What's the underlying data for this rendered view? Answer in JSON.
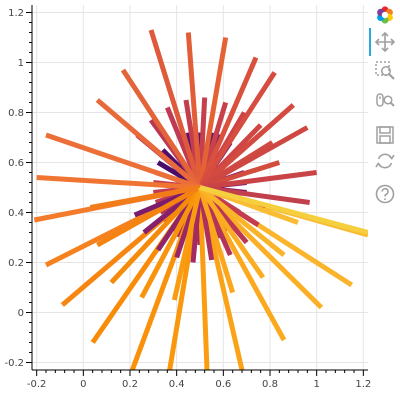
{
  "chart_data": {
    "type": "line",
    "title": "",
    "xlabel": "",
    "ylabel": "",
    "xlim": [
      -0.22,
      1.22
    ],
    "ylim": [
      -0.23,
      1.23
    ],
    "grid": true,
    "x_ticks": [
      "-0.2",
      "0",
      "0.2",
      "0.4",
      "0.6",
      "0.8",
      "1",
      "1.2"
    ],
    "x_tick_values": [
      -0.2,
      0,
      0.2,
      0.4,
      0.6,
      0.8,
      1,
      1.2
    ],
    "y_ticks": [
      "-0.2",
      "0",
      "0.2",
      "0.4",
      "0.6",
      "0.8",
      "1",
      "1.2"
    ],
    "y_tick_values": [
      -0.2,
      0,
      0.2,
      0.4,
      0.6,
      0.8,
      1,
      1.2
    ],
    "center": [
      0.5,
      0.5
    ],
    "palette": "Inferno",
    "segments": [
      {
        "angle": 150,
        "x0": 0.5,
        "y0": 0.5,
        "x1": 0.32,
        "y1": 0.6,
        "color": "#4a0c6b"
      },
      {
        "angle": 138,
        "x0": 0.5,
        "y0": 0.5,
        "x1": 0.34,
        "y1": 0.65,
        "color": "#4f0d6c"
      },
      {
        "angle": 126,
        "x0": 0.5,
        "y0": 0.5,
        "x1": 0.37,
        "y1": 0.68,
        "color": "#540f6d"
      },
      {
        "angle": 114,
        "x0": 0.5,
        "y0": 0.5,
        "x1": 0.41,
        "y1": 0.71,
        "color": "#59106e"
      },
      {
        "angle": 102,
        "x0": 0.5,
        "y0": 0.5,
        "x1": 0.45,
        "y1": 0.72,
        "color": "#5d126e"
      },
      {
        "angle": 90,
        "x0": 0.5,
        "y0": 0.5,
        "x1": 0.5,
        "y1": 0.72,
        "color": "#62146e"
      },
      {
        "angle": 78,
        "x0": 0.5,
        "y0": 0.5,
        "x1": 0.55,
        "y1": 0.72,
        "color": "#67166e"
      },
      {
        "angle": 66,
        "x0": 0.5,
        "y0": 0.5,
        "x1": 0.59,
        "y1": 0.71,
        "color": "#6b176e"
      },
      {
        "angle": 54,
        "x0": 0.5,
        "y0": 0.5,
        "x1": 0.63,
        "y1": 0.68,
        "color": "#70196e"
      },
      {
        "angle": 42,
        "x0": 0.5,
        "y0": 0.5,
        "x1": 0.66,
        "y1": 0.65,
        "color": "#741a6e"
      },
      {
        "angle": 30,
        "x0": 0.5,
        "y0": 0.5,
        "x1": 0.68,
        "y1": 0.6,
        "color": "#791c6d"
      },
      {
        "angle": 18,
        "x0": 0.5,
        "y0": 0.5,
        "x1": 0.69,
        "y1": 0.56,
        "color": "#7d1d6c"
      },
      {
        "angle": 6,
        "x0": 0.5,
        "y0": 0.5,
        "x1": 0.7,
        "y1": 0.52,
        "color": "#821f6c"
      },
      {
        "angle": -6,
        "x0": 0.5,
        "y0": 0.5,
        "x1": 0.7,
        "y1": 0.48,
        "color": "#86206b"
      },
      {
        "angle": -18,
        "x0": 0.5,
        "y0": 0.5,
        "x1": 0.69,
        "y1": 0.44,
        "color": "#8b226a"
      },
      {
        "angle": -30,
        "x0": 0.5,
        "y0": 0.5,
        "x1": 0.67,
        "y1": 0.4,
        "color": "#8f2469"
      },
      {
        "angle": -42,
        "x0": 0.5,
        "y0": 0.5,
        "x1": 0.65,
        "y1": 0.36,
        "color": "#932567"
      },
      {
        "angle": -54,
        "x0": 0.5,
        "y0": 0.5,
        "x1": 0.62,
        "y1": 0.33,
        "color": "#982766"
      },
      {
        "angle": -66,
        "x0": 0.5,
        "y0": 0.5,
        "x1": 0.59,
        "y1": 0.3,
        "color": "#9c2964"
      },
      {
        "angle": -78,
        "x0": 0.5,
        "y0": 0.5,
        "x1": 0.55,
        "y1": 0.28,
        "color": "#a02a63"
      },
      {
        "angle": -90,
        "x0": 0.5,
        "y0": 0.5,
        "x1": 0.5,
        "y1": 0.27,
        "color": "#a42c61"
      },
      {
        "angle": -102,
        "x0": 0.5,
        "y0": 0.5,
        "x1": 0.45,
        "y1": 0.28,
        "color": "#a92e5f"
      },
      {
        "angle": -114,
        "x0": 0.5,
        "y0": 0.5,
        "x1": 0.41,
        "y1": 0.3,
        "color": "#ad305d"
      },
      {
        "angle": -126,
        "x0": 0.5,
        "y0": 0.5,
        "x1": 0.38,
        "y1": 0.33,
        "color": "#b1325a"
      },
      {
        "angle": -138,
        "x0": 0.5,
        "y0": 0.5,
        "x1": 0.35,
        "y1": 0.36,
        "color": "#b53458"
      },
      {
        "angle": -150,
        "x0": 0.5,
        "y0": 0.5,
        "x1": 0.33,
        "y1": 0.4,
        "color": "#b83656"
      },
      {
        "angle": -162,
        "x0": 0.5,
        "y0": 0.5,
        "x1": 0.31,
        "y1": 0.44,
        "color": "#bc3853"
      },
      {
        "angle": -174,
        "x0": 0.5,
        "y0": 0.5,
        "x1": 0.3,
        "y1": 0.48,
        "color": "#c03a51"
      },
      {
        "angle": 174,
        "x0": 0.5,
        "y0": 0.5,
        "x1": 0.3,
        "y1": 0.52,
        "color": "#c33d4e"
      },
      {
        "angle": 162,
        "x0": 0.5,
        "y0": 0.5,
        "x1": 0.31,
        "y1": 0.56,
        "color": "#c63f4b"
      },
      {
        "angle": 72,
        "x0": 0.5,
        "y0": 0.5,
        "x1": 0.61,
        "y1": 0.84,
        "color": "#c9414a"
      },
      {
        "angle": 58,
        "x0": 0.5,
        "y0": 0.5,
        "x1": 0.69,
        "y1": 0.8,
        "color": "#cb4446"
      },
      {
        "angle": 44,
        "x0": 0.5,
        "y0": 0.5,
        "x1": 0.76,
        "y1": 0.75,
        "color": "#ce4744"
      },
      {
        "angle": 30,
        "x0": 0.5,
        "y0": 0.5,
        "x1": 0.81,
        "y1": 0.68,
        "color": "#d14a41"
      },
      {
        "angle": 16,
        "x0": 0.5,
        "y0": 0.5,
        "x1": 0.84,
        "y1": 0.6,
        "color": "#d34d3e"
      },
      {
        "angle": 86,
        "x0": 0.5,
        "y0": 0.5,
        "x1": 0.52,
        "y1": 0.86,
        "color": "#c63f4c"
      },
      {
        "angle": 100,
        "x0": 0.5,
        "y0": 0.5,
        "x1": 0.44,
        "y1": 0.85,
        "color": "#c33d4f"
      },
      {
        "angle": 114,
        "x0": 0.5,
        "y0": 0.5,
        "x1": 0.36,
        "y1": 0.82,
        "color": "#bf3a52"
      },
      {
        "angle": 128,
        "x0": 0.5,
        "y0": 0.5,
        "x1": 0.29,
        "y1": 0.77,
        "color": "#bb3855"
      },
      {
        "angle": 142,
        "x0": 0.5,
        "y0": 0.5,
        "x1": 0.23,
        "y1": 0.71,
        "color": "#b63557"
      },
      {
        "angle": 106,
        "x0": 0.5,
        "y0": 0.5,
        "x1": 0.29,
        "y1": 1.13,
        "color": "#de5a3a"
      },
      {
        "angle": 94,
        "x0": 0.5,
        "y0": 0.5,
        "x1": 0.45,
        "y1": 1.12,
        "color": "#e25e38"
      },
      {
        "angle": 82,
        "x0": 0.5,
        "y0": 0.5,
        "x1": 0.61,
        "y1": 1.1,
        "color": "#e56234"
      },
      {
        "angle": 69,
        "x0": 0.5,
        "y0": 0.5,
        "x1": 0.74,
        "y1": 1.02,
        "color": "#d9503d"
      },
      {
        "angle": 57,
        "x0": 0.5,
        "y0": 0.5,
        "x1": 0.82,
        "y1": 0.96,
        "color": "#d64c3f"
      },
      {
        "angle": 45,
        "x0": 0.5,
        "y0": 0.5,
        "x1": 0.9,
        "y1": 0.83,
        "color": "#d34a40"
      },
      {
        "angle": 33,
        "x0": 0.5,
        "y0": 0.5,
        "x1": 0.96,
        "y1": 0.74,
        "color": "#cf4742"
      },
      {
        "angle": 20,
        "x0": 0.5,
        "y0": 0.5,
        "x1": 1.0,
        "y1": 0.56,
        "color": "#c94347"
      },
      {
        "angle": 8,
        "x0": 0.5,
        "y0": 0.5,
        "x1": 0.97,
        "y1": 0.44,
        "color": "#c1404b"
      },
      {
        "angle": 118,
        "x0": 0.5,
        "y0": 0.5,
        "x1": 0.17,
        "y1": 0.97,
        "color": "#e4643a"
      },
      {
        "angle": 131,
        "x0": 0.5,
        "y0": 0.5,
        "x1": 0.06,
        "y1": 0.85,
        "color": "#e8693a"
      },
      {
        "angle": 145,
        "x0": 0.5,
        "y0": 0.5,
        "x1": -0.16,
        "y1": 0.71,
        "color": "#ec6f38"
      },
      {
        "angle": 169,
        "x0": 0.5,
        "y0": 0.5,
        "x1": -0.2,
        "y1": 0.54,
        "color": "#f07533"
      },
      {
        "angle": 187,
        "x0": 0.5,
        "y0": 0.5,
        "x1": -0.21,
        "y1": 0.37,
        "color": "#f37b2b"
      },
      {
        "angle": 203,
        "x0": 0.5,
        "y0": 0.5,
        "x1": -0.16,
        "y1": 0.19,
        "color": "#f5811f"
      },
      {
        "angle": 221,
        "x0": 0.5,
        "y0": 0.5,
        "x1": -0.09,
        "y1": 0.03,
        "color": "#f78611"
      },
      {
        "angle": 236,
        "x0": 0.5,
        "y0": 0.5,
        "x1": 0.04,
        "y1": -0.12,
        "color": "#f88c09"
      },
      {
        "angle": 251,
        "x0": 0.5,
        "y0": 0.5,
        "x1": 0.21,
        "y1": -0.23,
        "color": "#f9920a"
      },
      {
        "angle": 261,
        "x0": 0.5,
        "y0": 0.5,
        "x1": 0.37,
        "y1": -0.23,
        "color": "#fa980d"
      },
      {
        "angle": 272,
        "x0": 0.5,
        "y0": 0.5,
        "x1": 0.53,
        "y1": -0.23,
        "color": "#fb9d12"
      },
      {
        "angle": 283,
        "x0": 0.5,
        "y0": 0.5,
        "x1": 0.68,
        "y1": -0.23,
        "color": "#fba318"
      },
      {
        "angle": 300,
        "x0": 0.5,
        "y0": 0.5,
        "x1": 0.86,
        "y1": -0.11,
        "color": "#fba91e"
      },
      {
        "angle": 316,
        "x0": 0.5,
        "y0": 0.5,
        "x1": 1.02,
        "y1": 0.02,
        "color": "#fbaf25"
      },
      {
        "angle": 330,
        "x0": 0.5,
        "y0": 0.5,
        "x1": 1.15,
        "y1": 0.11,
        "color": "#fab52d"
      },
      {
        "angle": 344,
        "x0": 0.5,
        "y0": 0.5,
        "x1": 1.22,
        "y1": 0.31,
        "color": "#f8bb35"
      },
      {
        "angle": 200,
        "x0": 0.5,
        "y0": 0.5,
        "x1": 0.22,
        "y1": 0.39,
        "color": "#7a1b6d"
      },
      {
        "angle": 215,
        "x0": 0.5,
        "y0": 0.5,
        "x1": 0.26,
        "y1": 0.32,
        "color": "#85206b"
      },
      {
        "angle": 232,
        "x0": 0.5,
        "y0": 0.5,
        "x1": 0.32,
        "y1": 0.25,
        "color": "#8f2469"
      },
      {
        "angle": 248,
        "x0": 0.5,
        "y0": 0.5,
        "x1": 0.4,
        "y1": 0.22,
        "color": "#992766"
      },
      {
        "angle": 264,
        "x0": 0.5,
        "y0": 0.5,
        "x1": 0.47,
        "y1": 0.2,
        "color": "#a32b62"
      },
      {
        "angle": 280,
        "x0": 0.5,
        "y0": 0.5,
        "x1": 0.55,
        "y1": 0.21,
        "color": "#ac2f5e"
      },
      {
        "angle": 296,
        "x0": 0.5,
        "y0": 0.5,
        "x1": 0.63,
        "y1": 0.23,
        "color": "#b4335a"
      },
      {
        "angle": 312,
        "x0": 0.5,
        "y0": 0.5,
        "x1": 0.7,
        "y1": 0.28,
        "color": "#bc3754"
      },
      {
        "angle": 328,
        "x0": 0.5,
        "y0": 0.5,
        "x1": 0.75,
        "y1": 0.35,
        "color": "#c43c4e"
      },
      {
        "angle": 344,
        "x0": 0.5,
        "y0": 0.5,
        "x1": 0.78,
        "y1": 0.42,
        "color": "#cb4149"
      },
      {
        "angle": 225,
        "x0": 0.5,
        "y0": 0.5,
        "x1": 0.12,
        "y1": 0.12,
        "color": "#f58b0a"
      },
      {
        "angle": 240,
        "x0": 0.5,
        "y0": 0.5,
        "x1": 0.25,
        "y1": 0.06,
        "color": "#f7940c"
      },
      {
        "angle": 256,
        "x0": 0.5,
        "y0": 0.5,
        "x1": 0.39,
        "y1": 0.05,
        "color": "#f99c10"
      },
      {
        "angle": 208,
        "x0": 0.5,
        "y0": 0.5,
        "x1": 0.06,
        "y1": 0.27,
        "color": "#f48310"
      },
      {
        "angle": 190,
        "x0": 0.5,
        "y0": 0.5,
        "x1": 0.03,
        "y1": 0.42,
        "color": "#f27c19"
      },
      {
        "angle": 290,
        "x0": 0.5,
        "y0": 0.5,
        "x1": 0.64,
        "y1": 0.08,
        "color": "#fba61b"
      },
      {
        "angle": 305,
        "x0": 0.5,
        "y0": 0.5,
        "x1": 0.77,
        "y1": 0.14,
        "color": "#fbad22"
      },
      {
        "angle": 322,
        "x0": 0.5,
        "y0": 0.5,
        "x1": 0.86,
        "y1": 0.23,
        "color": "#fab42a"
      },
      {
        "angle": 340,
        "x0": 0.5,
        "y0": 0.5,
        "x1": 0.92,
        "y1": 0.36,
        "color": "#f9bc33"
      },
      {
        "angle": 350,
        "x0": 0.5,
        "y0": 0.5,
        "x1": 1.22,
        "y1": 0.32,
        "color": "#f6cf3f"
      }
    ]
  },
  "toolbar": {
    "tools": [
      {
        "name": "bokeh-logo",
        "icon": "bokeh-logo-icon",
        "interactable": false
      },
      {
        "name": "pan-tool",
        "icon": "pan-icon",
        "interactable": true,
        "active": true
      },
      {
        "name": "box-zoom-tool",
        "icon": "box-zoom-icon",
        "interactable": true
      },
      {
        "name": "wheel-zoom-tool",
        "icon": "wheel-zoom-icon",
        "interactable": true
      },
      {
        "name": "save-tool",
        "icon": "save-icon",
        "interactable": true
      },
      {
        "name": "reset-tool",
        "icon": "reset-icon",
        "interactable": true
      },
      {
        "name": "help-tool",
        "icon": "help-icon",
        "interactable": true
      }
    ],
    "accent": "#26aae1",
    "icon_color": "#a0a0a0"
  }
}
